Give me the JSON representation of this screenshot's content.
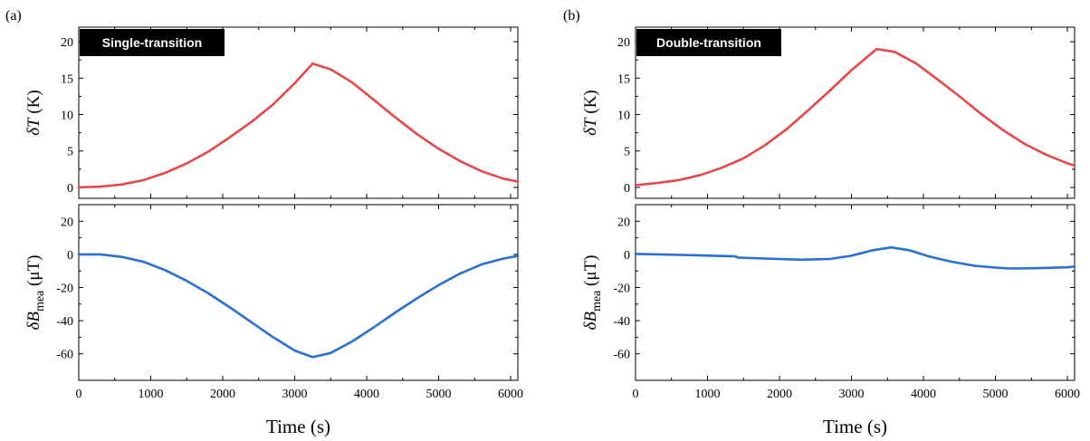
{
  "colors": {
    "temperature": "#e8474a",
    "field": "#2a6fd2",
    "badge_bg": "#000000",
    "badge_text": "#ffffff"
  },
  "x_axis": {
    "label": "Time (s)",
    "range": [
      0,
      6100
    ],
    "ticks": [
      0,
      1000,
      2000,
      3000,
      4000,
      5000,
      6000
    ]
  },
  "panels": [
    {
      "letter": "(a)",
      "badge": "Single-transition",
      "top": {
        "ylabel": "δT (K)",
        "ylim": [
          -1.5,
          22
        ],
        "ticks": [
          0,
          5,
          10,
          15,
          20
        ],
        "series": {
          "color": "#e8474a",
          "x": [
            0,
            300,
            600,
            900,
            1200,
            1500,
            1800,
            2100,
            2400,
            2700,
            3000,
            3250,
            3500,
            3800,
            4100,
            4400,
            4700,
            5000,
            5300,
            5600,
            5900,
            6100
          ],
          "y": [
            0,
            0.1,
            0.4,
            1.0,
            2.0,
            3.3,
            4.9,
            6.9,
            9.0,
            11.4,
            14.3,
            17.0,
            16.2,
            14.4,
            12.0,
            9.6,
            7.3,
            5.3,
            3.6,
            2.2,
            1.2,
            0.8
          ]
        }
      },
      "bottom": {
        "ylabel": "δB_mea (μT)",
        "ylim": [
          -76,
          30
        ],
        "ticks": [
          20,
          0,
          -20,
          -40,
          -60
        ],
        "series": {
          "color": "#2a6fd2",
          "x": [
            0,
            300,
            600,
            900,
            1200,
            1500,
            1800,
            2100,
            2400,
            2700,
            3000,
            3250,
            3500,
            3800,
            4100,
            4400,
            4700,
            5000,
            5300,
            5600,
            5900,
            6100
          ],
          "y": [
            0,
            0,
            -1.5,
            -4.5,
            -9.5,
            -16,
            -23.5,
            -32,
            -41,
            -50,
            -58,
            -62,
            -59.5,
            -52.5,
            -44,
            -35,
            -26.5,
            -18.5,
            -11.5,
            -6,
            -2.5,
            -1
          ]
        }
      }
    },
    {
      "letter": "(b)",
      "badge": "Double-transition",
      "top": {
        "ylabel": "δT (K)",
        "ylim": [
          -1.5,
          22
        ],
        "ticks": [
          0,
          5,
          10,
          15,
          20
        ],
        "series": {
          "color": "#e8474a",
          "x": [
            0,
            300,
            600,
            900,
            1200,
            1500,
            1800,
            2100,
            2400,
            2700,
            3000,
            3350,
            3600,
            3900,
            4200,
            4500,
            4800,
            5100,
            5400,
            5700,
            6000,
            6100
          ],
          "y": [
            0.3,
            0.6,
            1.0,
            1.7,
            2.7,
            4.0,
            5.8,
            8.0,
            10.6,
            13.3,
            16.1,
            19.0,
            18.6,
            17.0,
            14.8,
            12.5,
            10.1,
            7.9,
            6.0,
            4.5,
            3.3,
            3.0
          ]
        }
      },
      "bottom": {
        "ylabel": "δB_mea (μT)",
        "ylim": [
          -76,
          30
        ],
        "ticks": [
          20,
          0,
          -20,
          -40,
          -60
        ],
        "series": {
          "color": "#2a6fd2",
          "x": [
            0,
            400,
            800,
            1200,
            1390,
            1420,
            1800,
            2300,
            2700,
            3000,
            3300,
            3550,
            3800,
            4100,
            4400,
            4700,
            5000,
            5200,
            5600,
            6000,
            6100
          ],
          "y": [
            0.3,
            -0.1,
            -0.5,
            -1.0,
            -1.2,
            -1.9,
            -2.5,
            -3.2,
            -2.8,
            -0.8,
            2.5,
            4.2,
            2.5,
            -1.5,
            -4.5,
            -6.8,
            -8.0,
            -8.5,
            -8.3,
            -7.8,
            -7.3
          ]
        }
      }
    }
  ]
}
